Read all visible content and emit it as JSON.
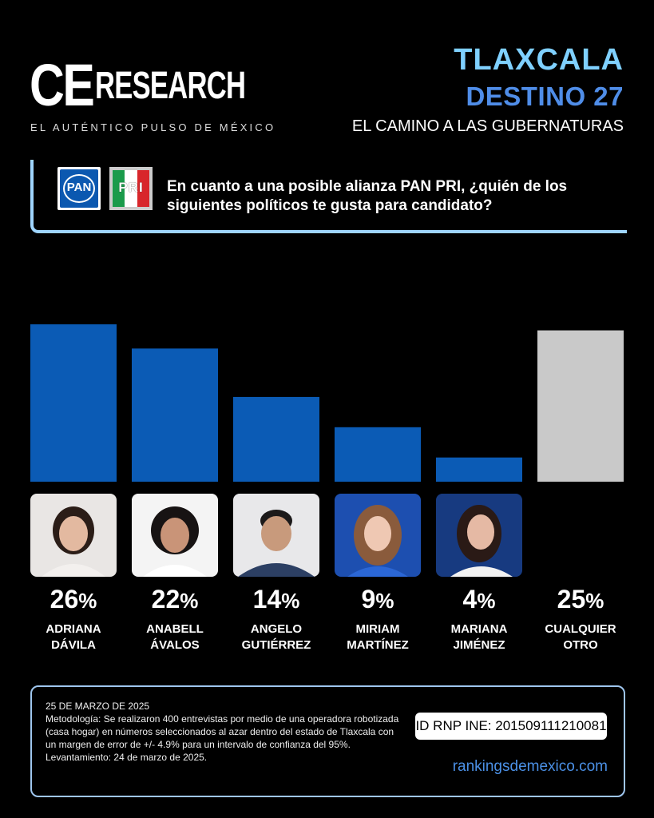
{
  "brand": {
    "logo_ce": "CE",
    "logo_research": "RESEARCH",
    "tagline": "EL AUTÉNTICO PULSO DE MÉXICO"
  },
  "header": {
    "line1": "TLAXCALA",
    "line2": "DESTINO 27",
    "line3": "EL CAMINO A LAS GUBERNATURAS"
  },
  "question": {
    "party1": "PAN",
    "party2": "PRI",
    "text": "En cuanto a una posible alianza PAN PRI, ¿quién de los siguientes políticos te gusta para candidato?"
  },
  "colors": {
    "bar_candidate": "#0b5bb5",
    "bar_other": "#c9c9c9",
    "accent_light": "#7fd0ff",
    "accent_mid": "#4f8de8"
  },
  "chart_data": {
    "type": "bar",
    "categories": [
      "ADRIANA DÁVILA",
      "ANABELL ÁVALOS",
      "ANGELO GUTIÉRREZ",
      "MIRIAM MARTÍNEZ",
      "MARIANA JIMÉNEZ",
      "CUALQUIER OTRO"
    ],
    "values": [
      26,
      22,
      14,
      9,
      4,
      25
    ],
    "value_labels": [
      "26",
      "22",
      "14",
      "9",
      "4",
      "25"
    ],
    "unit": "%",
    "name_lines": [
      [
        "ADRIANA",
        "DÁVILA"
      ],
      [
        "ANABELL",
        "ÁVALOS"
      ],
      [
        "ANGELO",
        "GUTIÉRREZ"
      ],
      [
        "MIRIAM",
        "MARTÍNEZ"
      ],
      [
        "MARIANA",
        "JIMÉNEZ"
      ],
      [
        "CUALQUIER",
        "OTRO"
      ]
    ],
    "ylim": [
      0,
      26
    ],
    "grid": false
  },
  "footer": {
    "date": "25 DE MARZO DE 2025",
    "methodology": "Metodología: Se realizaron 400 entrevistas por medio de una operadora robotizada (casa hogar) en números seleccionados al azar dentro del estado de Tlaxcala con un margen de error de +/- 4.9% para un intervalo de confianza del 95%.",
    "fieldwork": "Levantamiento: 24 de marzo de 2025.",
    "id": "ID RNP INE: 201509111210081",
    "website": "rankingsdemexico.com"
  }
}
